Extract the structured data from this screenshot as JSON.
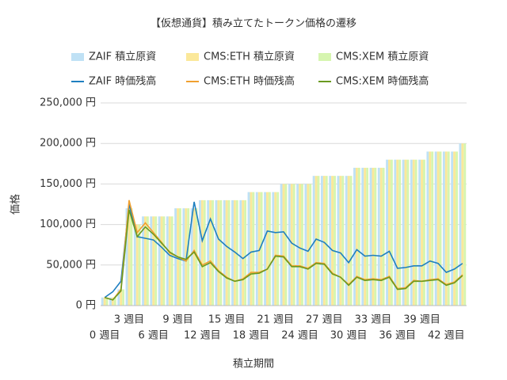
{
  "chart_data": {
    "type": "combo",
    "title": "【仮想通貨】積み立てたトークン価格の遷移",
    "x_label": "積立期間",
    "y_label": "価格",
    "categories": [
      "0 週目",
      null,
      null,
      "3 週目",
      null,
      null,
      "6 週目",
      null,
      null,
      "9 週目",
      null,
      null,
      "12 週目",
      null,
      null,
      "15 週目",
      null,
      null,
      "18 週目",
      null,
      null,
      "21 週目",
      null,
      null,
      "24 週目",
      null,
      null,
      "27 週目",
      null,
      null,
      "30 週目",
      null,
      null,
      "33 週目",
      null,
      null,
      "36 週目",
      null,
      null,
      "39 週目",
      null,
      null,
      "42 週目",
      null,
      null
    ],
    "ylim": [
      0,
      250000
    ],
    "yticks": [
      {
        "value": 0,
        "label": "0 円"
      },
      {
        "value": 50000,
        "label": "50,000 円"
      },
      {
        "value": 100000,
        "label": "100,000 円"
      },
      {
        "value": 150000,
        "label": "150,000 円"
      },
      {
        "value": 200000,
        "label": "200,000 円"
      },
      {
        "value": 250000,
        "label": "250,000 円"
      }
    ],
    "series": [
      {
        "name": "ZAIF  積立原資",
        "type": "bar",
        "color": "#bfe1f5",
        "values": [
          10000,
          10000,
          20000,
          120000,
          100000,
          110000,
          110000,
          110000,
          110000,
          120000,
          120000,
          120000,
          130000,
          130000,
          130000,
          130000,
          130000,
          130000,
          140000,
          140000,
          140000,
          140000,
          150000,
          150000,
          150000,
          150000,
          160000,
          160000,
          160000,
          160000,
          160000,
          170000,
          170000,
          170000,
          170000,
          180000,
          180000,
          180000,
          180000,
          180000,
          190000,
          190000,
          190000,
          190000,
          200000
        ]
      },
      {
        "name": "CMS:ETH  積立原資",
        "type": "bar",
        "color": "#fbe89a",
        "values": [
          10000,
          10000,
          20000,
          120000,
          100000,
          110000,
          110000,
          110000,
          110000,
          120000,
          120000,
          120000,
          130000,
          130000,
          130000,
          130000,
          130000,
          130000,
          140000,
          140000,
          140000,
          140000,
          150000,
          150000,
          150000,
          150000,
          160000,
          160000,
          160000,
          160000,
          160000,
          170000,
          170000,
          170000,
          170000,
          180000,
          180000,
          180000,
          180000,
          180000,
          190000,
          190000,
          190000,
          190000,
          200000
        ]
      },
      {
        "name": "CMS:XEM  積立原資",
        "type": "bar",
        "color": "#d6f5b0",
        "values": [
          10000,
          10000,
          20000,
          120000,
          100000,
          110000,
          110000,
          110000,
          110000,
          120000,
          120000,
          120000,
          130000,
          130000,
          130000,
          130000,
          130000,
          130000,
          140000,
          140000,
          140000,
          140000,
          150000,
          150000,
          150000,
          150000,
          160000,
          160000,
          160000,
          160000,
          160000,
          170000,
          170000,
          170000,
          170000,
          180000,
          180000,
          180000,
          180000,
          180000,
          190000,
          190000,
          190000,
          190000,
          200000
        ]
      },
      {
        "name": "ZAIF  時価残高",
        "type": "line",
        "color": "#1f7fc0",
        "values": [
          10000,
          17000,
          30000,
          125000,
          85000,
          83000,
          81000,
          72000,
          62000,
          58000,
          55000,
          128000,
          80000,
          107000,
          82000,
          73000,
          66000,
          58000,
          66000,
          68000,
          92000,
          90000,
          91000,
          77000,
          71000,
          67000,
          82000,
          78000,
          68000,
          65000,
          53000,
          69000,
          61000,
          62000,
          61000,
          67000,
          46000,
          47000,
          49000,
          49000,
          55000,
          52000,
          41000,
          45000,
          52000
        ]
      },
      {
        "name": "CMS:ETH  時価残高",
        "type": "line",
        "color": "#f0a030",
        "values": [
          10000,
          7000,
          20000,
          130000,
          90000,
          102000,
          90000,
          78000,
          65000,
          60000,
          55000,
          68000,
          50000,
          55000,
          43000,
          35000,
          30000,
          33000,
          41000,
          41000,
          45000,
          62000,
          61000,
          49000,
          49000,
          46000,
          53000,
          52000,
          40000,
          35000,
          26000,
          36000,
          32000,
          33000,
          32000,
          36000,
          21000,
          22000,
          31000,
          30000,
          32000,
          33000,
          26000,
          29000,
          38000
        ]
      },
      {
        "name": "CMS:XEM  時価残高",
        "type": "line",
        "color": "#6a9a20",
        "values": [
          10000,
          7000,
          18000,
          118000,
          85000,
          97000,
          88000,
          77000,
          66000,
          60000,
          57000,
          66000,
          48000,
          53000,
          42000,
          34000,
          30000,
          32000,
          39000,
          40000,
          45000,
          61000,
          60000,
          48000,
          48000,
          45000,
          52000,
          51000,
          39000,
          35000,
          25000,
          35000,
          31000,
          32000,
          31000,
          35000,
          20000,
          21000,
          30000,
          30000,
          31000,
          32000,
          25000,
          28000,
          37000
        ]
      }
    ],
    "grid": true
  }
}
